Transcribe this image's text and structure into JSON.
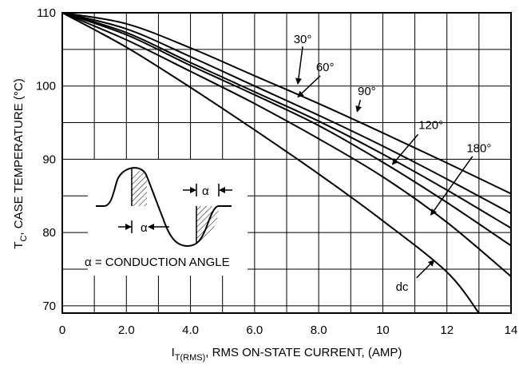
{
  "chart_data": {
    "type": "line",
    "xlabel": {
      "main": "I",
      "sub": "T(RMS)",
      "rest": ", RMS ON-STATE CURRENT, (AMP)"
    },
    "ylabel": {
      "main": "T",
      "sub": "C",
      "rest": ", CASE TEMPERATURE (°C)"
    },
    "xlim": [
      0,
      14
    ],
    "ylim": [
      69,
      110
    ],
    "x_ticks": [
      {
        "value": 0,
        "label": "0"
      },
      {
        "value": 2,
        "label": "2.0"
      },
      {
        "value": 4,
        "label": "4.0"
      },
      {
        "value": 6,
        "label": "6.0"
      },
      {
        "value": 8,
        "label": "8.0"
      },
      {
        "value": 10,
        "label": "10"
      },
      {
        "value": 12,
        "label": "12"
      },
      {
        "value": 14,
        "label": "14"
      }
    ],
    "y_ticks": [
      {
        "value": 70,
        "label": "70"
      },
      {
        "value": 80,
        "label": "80"
      },
      {
        "value": 90,
        "label": "90"
      },
      {
        "value": 100,
        "label": "100"
      },
      {
        "value": 110,
        "label": "110"
      }
    ],
    "grid": {
      "x_minor_step": 1,
      "y_minor_step": 5
    },
    "series": [
      {
        "name": "30°",
        "points": [
          [
            0,
            110
          ],
          [
            2,
            108.5
          ],
          [
            4,
            105.2
          ],
          [
            6,
            101.4
          ],
          [
            8,
            97.6
          ],
          [
            10,
            93.6
          ],
          [
            12,
            89.5
          ],
          [
            14,
            85.3
          ]
        ]
      },
      {
        "name": "60°",
        "points": [
          [
            0,
            110
          ],
          [
            2,
            107.8
          ],
          [
            4,
            104
          ],
          [
            6,
            100
          ],
          [
            8,
            96
          ],
          [
            10,
            91.8
          ],
          [
            12,
            87.3
          ],
          [
            14,
            82.6
          ]
        ]
      },
      {
        "name": "90°",
        "points": [
          [
            0,
            110
          ],
          [
            2,
            107.3
          ],
          [
            4,
            103.2
          ],
          [
            6,
            99.2
          ],
          [
            8,
            95.2
          ],
          [
            10,
            90.7
          ],
          [
            12,
            85.8
          ],
          [
            14,
            80.6
          ]
        ]
      },
      {
        "name": "120°",
        "points": [
          [
            0,
            110
          ],
          [
            2,
            107
          ],
          [
            4,
            102.8
          ],
          [
            6,
            98.8
          ],
          [
            8,
            94.6
          ],
          [
            10,
            89.6
          ],
          [
            12,
            84.1
          ],
          [
            14,
            78.2
          ]
        ]
      },
      {
        "name": "180°",
        "points": [
          [
            0,
            110
          ],
          [
            2,
            106.3
          ],
          [
            4,
            102
          ],
          [
            6,
            97.6
          ],
          [
            8,
            92.8
          ],
          [
            10,
            87.6
          ],
          [
            12,
            81.4
          ],
          [
            14,
            74
          ]
        ]
      },
      {
        "name": "dc",
        "points": [
          [
            0,
            110
          ],
          [
            2,
            105.3
          ],
          [
            4,
            99.8
          ],
          [
            6,
            94
          ],
          [
            8,
            88
          ],
          [
            10,
            81.6
          ],
          [
            12,
            74.6
          ],
          [
            13,
            69
          ]
        ]
      }
    ],
    "curve_labels": [
      {
        "text": "30°",
        "pos": [
          7.5,
          106.4
        ],
        "pointer": [
          [
            7.5,
            105.4
          ],
          [
            7.35,
            100.3
          ]
        ]
      },
      {
        "text": "60°",
        "pos": [
          8.2,
          102.6
        ],
        "pointer": [
          [
            8.05,
            101.4
          ],
          [
            7.35,
            98.5
          ]
        ]
      },
      {
        "text": "90°",
        "pos": [
          9.5,
          99.3
        ],
        "pointer": [
          [
            9.3,
            98.1
          ],
          [
            9.2,
            96.5
          ]
        ]
      },
      {
        "text": "120°",
        "pos": [
          11.5,
          94.7
        ],
        "pointer": [
          [
            11.1,
            93.4
          ],
          [
            10.3,
            89.3
          ]
        ]
      },
      {
        "text": "180°",
        "pos": [
          13.0,
          91.5
        ],
        "pointer": [
          [
            12.8,
            90.4
          ],
          [
            11.5,
            82.4
          ]
        ]
      },
      {
        "text": "dc",
        "pos": [
          10.6,
          72.6
        ],
        "pointer": [
          [
            11.05,
            73.8
          ],
          [
            11.6,
            76.2
          ]
        ]
      }
    ],
    "inset": {
      "alpha_symbol": "α",
      "caption": "α = CONDUCTION ANGLE"
    }
  }
}
